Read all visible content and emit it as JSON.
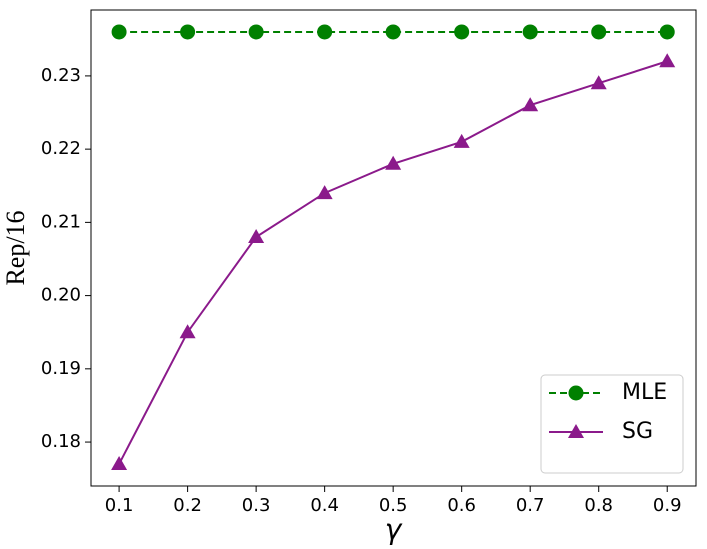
{
  "chart_data": {
    "type": "line",
    "x_label": "γ",
    "y_label": "Rep/16",
    "x": [
      0.1,
      0.2,
      0.3,
      0.4,
      0.5,
      0.6,
      0.7,
      0.8,
      0.9
    ],
    "series": [
      {
        "name": "MLE",
        "color": "#008000",
        "linestyle": "dashed",
        "marker": "circle",
        "values": [
          0.236,
          0.236,
          0.236,
          0.236,
          0.236,
          0.236,
          0.236,
          0.236,
          0.236
        ]
      },
      {
        "name": "SG",
        "color": "#8b1a8b",
        "linestyle": "solid",
        "marker": "triangle",
        "values": [
          0.177,
          0.195,
          0.208,
          0.214,
          0.218,
          0.221,
          0.226,
          0.229,
          0.232
        ]
      }
    ],
    "xlim": [
      0.059,
      0.942
    ],
    "ylim": [
      0.174,
      0.239
    ],
    "xticks": [
      0.1,
      0.2,
      0.3,
      0.4,
      0.5,
      0.6,
      0.7,
      0.8,
      0.9
    ],
    "yticks": [
      0.18,
      0.19,
      {
        "value": 0.2,
        "label": "0.20"
      },
      0.21,
      0.22,
      0.23
    ],
    "legend": "lower right",
    "grid": false
  }
}
